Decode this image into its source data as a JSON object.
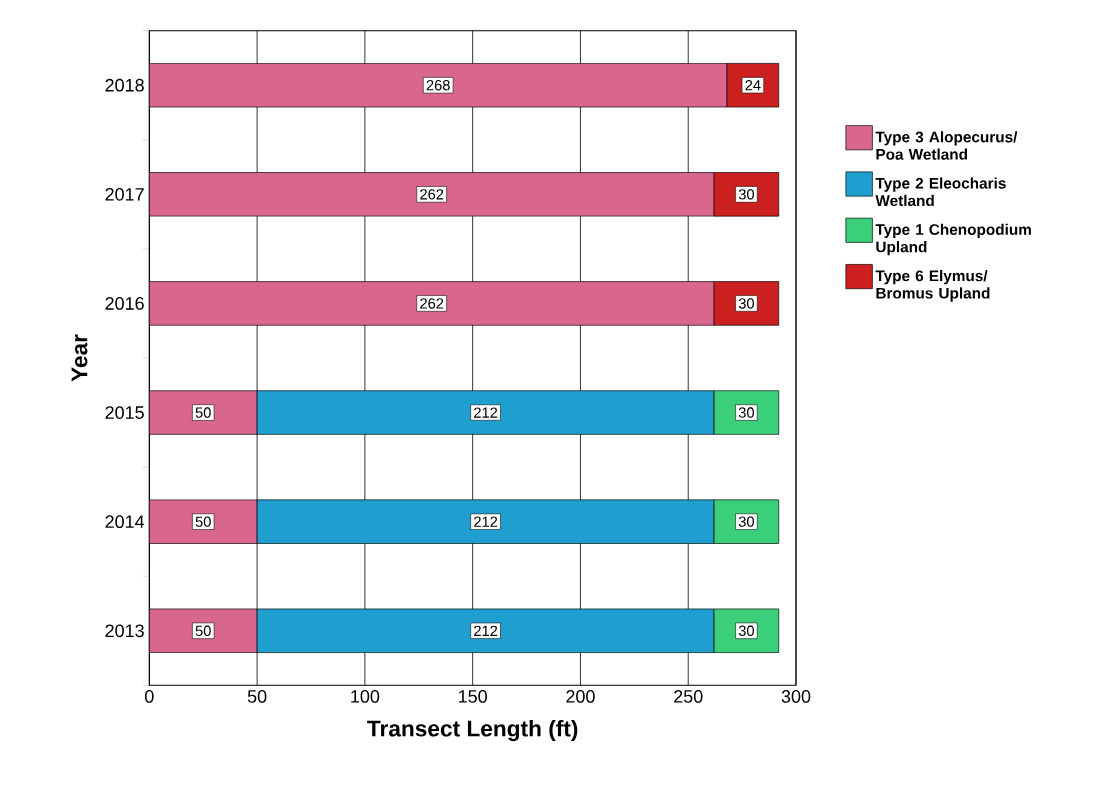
{
  "chart_data": {
    "type": "bar",
    "orientation": "horizontal",
    "stacked": true,
    "xlabel": "Transect Length (ft)",
    "ylabel": "Year",
    "categories": [
      "2018",
      "2017",
      "2016",
      "2015",
      "2014",
      "2013"
    ],
    "series": [
      {
        "name": "Type 3 Alopecurus/ Poa Wetland",
        "color": "#d9668f",
        "values": [
          268,
          262,
          262,
          50,
          50,
          50
        ]
      },
      {
        "name": "Type 2 Eleocharis Wetland",
        "color": "#1f9fd0",
        "values": [
          null,
          null,
          null,
          212,
          212,
          212
        ]
      },
      {
        "name": "Type 1 Chenopodium Upland",
        "color": "#3ccf7a",
        "values": [
          null,
          null,
          null,
          30,
          30,
          30
        ]
      },
      {
        "name": "Type 6 Elymus/ Bromus Upland",
        "color": "#cc1f1f",
        "values": [
          24,
          30,
          30,
          null,
          null,
          null
        ]
      }
    ],
    "xlim": [
      0,
      300
    ],
    "xticks": [
      0,
      50,
      100,
      150,
      200,
      250,
      300
    ],
    "grid": "x",
    "legend": "right",
    "data_labels": true
  }
}
